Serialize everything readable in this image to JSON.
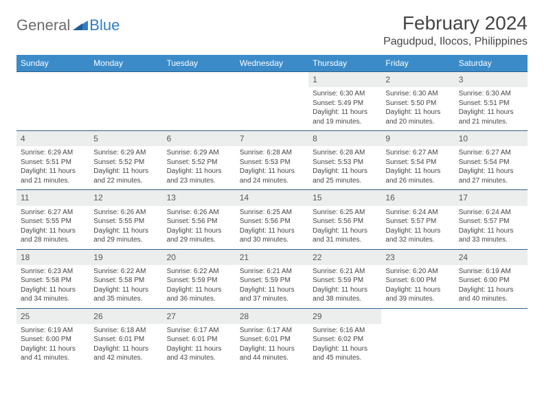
{
  "logo": {
    "general": "General",
    "blue": "Blue"
  },
  "title": "February 2024",
  "location": "Pagudpud, Ilocos, Philippines",
  "styling": {
    "header_bg": "#3b8bc9",
    "header_text": "#ffffff",
    "daynum_bg": "#eceded",
    "border_color": "#2a5d8a",
    "body_bg": "#ffffff",
    "text_color": "#444444",
    "logo_gray": "#6b6b6b",
    "logo_blue": "#2f7dc4",
    "month_fontsize": 28,
    "location_fontsize": 16,
    "weekday_fontsize": 12,
    "cell_fontsize": 10
  },
  "weekdays": [
    "Sunday",
    "Monday",
    "Tuesday",
    "Wednesday",
    "Thursday",
    "Friday",
    "Saturday"
  ],
  "weeks": [
    [
      {
        "n": "",
        "sr": "",
        "ss": "",
        "dl": ""
      },
      {
        "n": "",
        "sr": "",
        "ss": "",
        "dl": ""
      },
      {
        "n": "",
        "sr": "",
        "ss": "",
        "dl": ""
      },
      {
        "n": "",
        "sr": "",
        "ss": "",
        "dl": ""
      },
      {
        "n": "1",
        "sr": "Sunrise: 6:30 AM",
        "ss": "Sunset: 5:49 PM",
        "dl": "Daylight: 11 hours and 19 minutes."
      },
      {
        "n": "2",
        "sr": "Sunrise: 6:30 AM",
        "ss": "Sunset: 5:50 PM",
        "dl": "Daylight: 11 hours and 20 minutes."
      },
      {
        "n": "3",
        "sr": "Sunrise: 6:30 AM",
        "ss": "Sunset: 5:51 PM",
        "dl": "Daylight: 11 hours and 21 minutes."
      }
    ],
    [
      {
        "n": "4",
        "sr": "Sunrise: 6:29 AM",
        "ss": "Sunset: 5:51 PM",
        "dl": "Daylight: 11 hours and 21 minutes."
      },
      {
        "n": "5",
        "sr": "Sunrise: 6:29 AM",
        "ss": "Sunset: 5:52 PM",
        "dl": "Daylight: 11 hours and 22 minutes."
      },
      {
        "n": "6",
        "sr": "Sunrise: 6:29 AM",
        "ss": "Sunset: 5:52 PM",
        "dl": "Daylight: 11 hours and 23 minutes."
      },
      {
        "n": "7",
        "sr": "Sunrise: 6:28 AM",
        "ss": "Sunset: 5:53 PM",
        "dl": "Daylight: 11 hours and 24 minutes."
      },
      {
        "n": "8",
        "sr": "Sunrise: 6:28 AM",
        "ss": "Sunset: 5:53 PM",
        "dl": "Daylight: 11 hours and 25 minutes."
      },
      {
        "n": "9",
        "sr": "Sunrise: 6:27 AM",
        "ss": "Sunset: 5:54 PM",
        "dl": "Daylight: 11 hours and 26 minutes."
      },
      {
        "n": "10",
        "sr": "Sunrise: 6:27 AM",
        "ss": "Sunset: 5:54 PM",
        "dl": "Daylight: 11 hours and 27 minutes."
      }
    ],
    [
      {
        "n": "11",
        "sr": "Sunrise: 6:27 AM",
        "ss": "Sunset: 5:55 PM",
        "dl": "Daylight: 11 hours and 28 minutes."
      },
      {
        "n": "12",
        "sr": "Sunrise: 6:26 AM",
        "ss": "Sunset: 5:55 PM",
        "dl": "Daylight: 11 hours and 29 minutes."
      },
      {
        "n": "13",
        "sr": "Sunrise: 6:26 AM",
        "ss": "Sunset: 5:56 PM",
        "dl": "Daylight: 11 hours and 29 minutes."
      },
      {
        "n": "14",
        "sr": "Sunrise: 6:25 AM",
        "ss": "Sunset: 5:56 PM",
        "dl": "Daylight: 11 hours and 30 minutes."
      },
      {
        "n": "15",
        "sr": "Sunrise: 6:25 AM",
        "ss": "Sunset: 5:56 PM",
        "dl": "Daylight: 11 hours and 31 minutes."
      },
      {
        "n": "16",
        "sr": "Sunrise: 6:24 AM",
        "ss": "Sunset: 5:57 PM",
        "dl": "Daylight: 11 hours and 32 minutes."
      },
      {
        "n": "17",
        "sr": "Sunrise: 6:24 AM",
        "ss": "Sunset: 5:57 PM",
        "dl": "Daylight: 11 hours and 33 minutes."
      }
    ],
    [
      {
        "n": "18",
        "sr": "Sunrise: 6:23 AM",
        "ss": "Sunset: 5:58 PM",
        "dl": "Daylight: 11 hours and 34 minutes."
      },
      {
        "n": "19",
        "sr": "Sunrise: 6:22 AM",
        "ss": "Sunset: 5:58 PM",
        "dl": "Daylight: 11 hours and 35 minutes."
      },
      {
        "n": "20",
        "sr": "Sunrise: 6:22 AM",
        "ss": "Sunset: 5:59 PM",
        "dl": "Daylight: 11 hours and 36 minutes."
      },
      {
        "n": "21",
        "sr": "Sunrise: 6:21 AM",
        "ss": "Sunset: 5:59 PM",
        "dl": "Daylight: 11 hours and 37 minutes."
      },
      {
        "n": "22",
        "sr": "Sunrise: 6:21 AM",
        "ss": "Sunset: 5:59 PM",
        "dl": "Daylight: 11 hours and 38 minutes."
      },
      {
        "n": "23",
        "sr": "Sunrise: 6:20 AM",
        "ss": "Sunset: 6:00 PM",
        "dl": "Daylight: 11 hours and 39 minutes."
      },
      {
        "n": "24",
        "sr": "Sunrise: 6:19 AM",
        "ss": "Sunset: 6:00 PM",
        "dl": "Daylight: 11 hours and 40 minutes."
      }
    ],
    [
      {
        "n": "25",
        "sr": "Sunrise: 6:19 AM",
        "ss": "Sunset: 6:00 PM",
        "dl": "Daylight: 11 hours and 41 minutes."
      },
      {
        "n": "26",
        "sr": "Sunrise: 6:18 AM",
        "ss": "Sunset: 6:01 PM",
        "dl": "Daylight: 11 hours and 42 minutes."
      },
      {
        "n": "27",
        "sr": "Sunrise: 6:17 AM",
        "ss": "Sunset: 6:01 PM",
        "dl": "Daylight: 11 hours and 43 minutes."
      },
      {
        "n": "28",
        "sr": "Sunrise: 6:17 AM",
        "ss": "Sunset: 6:01 PM",
        "dl": "Daylight: 11 hours and 44 minutes."
      },
      {
        "n": "29",
        "sr": "Sunrise: 6:16 AM",
        "ss": "Sunset: 6:02 PM",
        "dl": "Daylight: 11 hours and 45 minutes."
      },
      {
        "n": "",
        "sr": "",
        "ss": "",
        "dl": ""
      },
      {
        "n": "",
        "sr": "",
        "ss": "",
        "dl": ""
      }
    ]
  ]
}
